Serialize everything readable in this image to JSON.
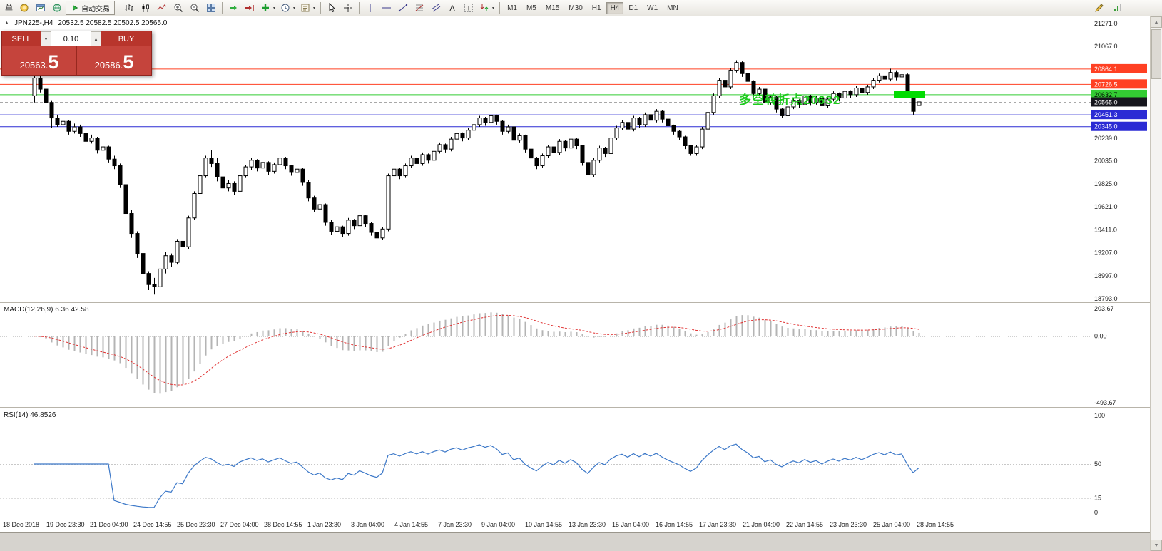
{
  "toolbar": {
    "left_label": "单",
    "auto_trading_label": "自动交易",
    "timeframes": [
      "M1",
      "M5",
      "M15",
      "M30",
      "H1",
      "H4",
      "D1",
      "W1",
      "MN"
    ],
    "active_timeframe": "H4"
  },
  "icons": {
    "symbol_marker": "▲",
    "caret_down": "▾",
    "caret_up": "▴",
    "dropdown_caret": "▾",
    "scroll_up": "▲",
    "scroll_down": "▼"
  },
  "chart_header": {
    "symbol_period": "JPN225-,H4",
    "ohlc": "20532.5 20582.5 20502.5 20565.0"
  },
  "trade_panel": {
    "sell_label": "SELL",
    "buy_label": "BUY",
    "lot": "0.10",
    "sell_price_small": "20563.",
    "sell_price_big": "5",
    "buy_price_small": "20586.",
    "buy_price_big": "5"
  },
  "annotation": {
    "text": "多空转折点20632",
    "color": "#1ecb1e",
    "bar_color": "#00dc00"
  },
  "chart_data": {
    "type": "candlestick",
    "price": {
      "type": "candlestick",
      "symbol": "JPN225-",
      "period": "H4",
      "ylim": [
        18793.0,
        21271.0
      ],
      "grid_labels": [
        "21271.0",
        "21067.0",
        "20239.0",
        "20035.0",
        "19825.0",
        "19621.0",
        "19411.0",
        "19207.0",
        "18997.0",
        "18793.0"
      ],
      "levels": [
        {
          "price": 20864.1,
          "label": "20864.1",
          "color": "#ff4023",
          "text_color": "#ffffff",
          "style": "solid"
        },
        {
          "price": 20726.5,
          "label": "20726.5",
          "color": "#ff4023",
          "text_color": "#ffffff",
          "style": "solid"
        },
        {
          "price": 20632.7,
          "label": "20632.7",
          "color": "#33cc33",
          "text_color": "#000000",
          "style": "solid"
        },
        {
          "price": 20565.0,
          "label": "20565.0",
          "color": "#16161d",
          "text_color": "#ffffff",
          "style": "dash",
          "line_color": "#a8a8a8"
        },
        {
          "price": 20451.3,
          "label": "20451.3",
          "color": "#2b2bd4",
          "text_color": "#ffffff",
          "style": "solid"
        },
        {
          "price": 20345.0,
          "label": "20345.0",
          "color": "#2b2bd4",
          "text_color": "#ffffff",
          "style": "solid"
        }
      ],
      "candles": [
        [
          20620,
          20800,
          20560,
          20780
        ],
        [
          20780,
          20810,
          20650,
          20680
        ],
        [
          20680,
          20700,
          20530,
          20560
        ],
        [
          20560,
          20580,
          20330,
          20420
        ],
        [
          20420,
          20450,
          20340,
          20360
        ],
        [
          20360,
          20430,
          20340,
          20390
        ],
        [
          20390,
          20400,
          20270,
          20300
        ],
        [
          20300,
          20370,
          20280,
          20340
        ],
        [
          20340,
          20360,
          20250,
          20280
        ],
        [
          20280,
          20300,
          20180,
          20210
        ],
        [
          20210,
          20270,
          20190,
          20240
        ],
        [
          20240,
          20250,
          20100,
          20130
        ],
        [
          20130,
          20190,
          20110,
          20160
        ],
        [
          20160,
          20170,
          20020,
          20050
        ],
        [
          20050,
          20080,
          19960,
          19990
        ],
        [
          19990,
          20010,
          19790,
          19820
        ],
        [
          19820,
          19840,
          19520,
          19560
        ],
        [
          19560,
          19590,
          19340,
          19380
        ],
        [
          19380,
          19400,
          19160,
          19200
        ],
        [
          19200,
          19230,
          18980,
          19020
        ],
        [
          19020,
          19040,
          18870,
          18920
        ],
        [
          18920,
          18980,
          18830,
          18900
        ],
        [
          18900,
          19090,
          18860,
          19060
        ],
        [
          19060,
          19210,
          19020,
          19180
        ],
        [
          19180,
          19200,
          19080,
          19120
        ],
        [
          19120,
          19330,
          19100,
          19310
        ],
        [
          19310,
          19340,
          19220,
          19260
        ],
        [
          19260,
          19540,
          19240,
          19520
        ],
        [
          19520,
          19760,
          19500,
          19740
        ],
        [
          19740,
          19920,
          19710,
          19900
        ],
        [
          19900,
          20080,
          19880,
          20060
        ],
        [
          20060,
          20130,
          19980,
          20010
        ],
        [
          20010,
          20060,
          19850,
          19890
        ],
        [
          19890,
          19910,
          19760,
          19790
        ],
        [
          19790,
          19860,
          19760,
          19830
        ],
        [
          19830,
          19850,
          19730,
          19760
        ],
        [
          19760,
          19920,
          19740,
          19900
        ],
        [
          19900,
          20000,
          19880,
          19980
        ],
        [
          19980,
          20060,
          19950,
          20040
        ],
        [
          20040,
          20050,
          19940,
          19970
        ],
        [
          19970,
          20040,
          19950,
          20020
        ],
        [
          20020,
          20030,
          19910,
          19940
        ],
        [
          19940,
          20020,
          19920,
          20000
        ],
        [
          20000,
          20080,
          19980,
          20060
        ],
        [
          20060,
          20070,
          19960,
          19990
        ],
        [
          19990,
          20000,
          19900,
          19930
        ],
        [
          19930,
          19980,
          19910,
          19960
        ],
        [
          19960,
          19970,
          19810,
          19840
        ],
        [
          19840,
          19860,
          19670,
          19700
        ],
        [
          19700,
          19720,
          19570,
          19600
        ],
        [
          19600,
          19660,
          19580,
          19640
        ],
        [
          19640,
          19650,
          19450,
          19480
        ],
        [
          19480,
          19500,
          19370,
          19400
        ],
        [
          19400,
          19460,
          19380,
          19440
        ],
        [
          19440,
          19450,
          19350,
          19380
        ],
        [
          19380,
          19520,
          19360,
          19500
        ],
        [
          19500,
          19510,
          19420,
          19450
        ],
        [
          19450,
          19560,
          19430,
          19540
        ],
        [
          19540,
          19550,
          19440,
          19470
        ],
        [
          19470,
          19480,
          19360,
          19390
        ],
        [
          19390,
          19400,
          19240,
          19340
        ],
        [
          19340,
          19440,
          19320,
          19420
        ],
        [
          19420,
          19920,
          19400,
          19900
        ],
        [
          19900,
          19990,
          19860,
          19960
        ],
        [
          19960,
          19970,
          19870,
          19900
        ],
        [
          19900,
          20010,
          19880,
          19990
        ],
        [
          19990,
          20080,
          19970,
          20060
        ],
        [
          20060,
          20070,
          19980,
          20010
        ],
        [
          20010,
          20110,
          19990,
          20090
        ],
        [
          20090,
          20100,
          20010,
          20040
        ],
        [
          20040,
          20140,
          20020,
          20120
        ],
        [
          20120,
          20200,
          20100,
          20180
        ],
        [
          20180,
          20190,
          20110,
          20140
        ],
        [
          20140,
          20250,
          20120,
          20230
        ],
        [
          20230,
          20300,
          20210,
          20280
        ],
        [
          20280,
          20290,
          20210,
          20240
        ],
        [
          20240,
          20330,
          20220,
          20310
        ],
        [
          20310,
          20380,
          20290,
          20360
        ],
        [
          20360,
          20440,
          20340,
          20420
        ],
        [
          20420,
          20430,
          20350,
          20380
        ],
        [
          20380,
          20460,
          20360,
          20440
        ],
        [
          20440,
          20450,
          20360,
          20390
        ],
        [
          20390,
          20400,
          20270,
          20300
        ],
        [
          20300,
          20360,
          20280,
          20340
        ],
        [
          20340,
          20350,
          20190,
          20220
        ],
        [
          20220,
          20280,
          20200,
          20260
        ],
        [
          20260,
          20270,
          20110,
          20140
        ],
        [
          20140,
          20150,
          20030,
          20060
        ],
        [
          20060,
          20070,
          19960,
          19990
        ],
        [
          19990,
          20100,
          19970,
          20080
        ],
        [
          20080,
          20180,
          20060,
          20160
        ],
        [
          20160,
          20170,
          20080,
          20110
        ],
        [
          20110,
          20230,
          20090,
          20210
        ],
        [
          20210,
          20220,
          20120,
          20150
        ],
        [
          20150,
          20250,
          20130,
          20230
        ],
        [
          20230,
          20240,
          20140,
          20170
        ],
        [
          20170,
          20180,
          19990,
          20020
        ],
        [
          20020,
          20030,
          19870,
          19910
        ],
        [
          19910,
          20060,
          19890,
          20040
        ],
        [
          20040,
          20170,
          20020,
          20150
        ],
        [
          20150,
          20160,
          20070,
          20100
        ],
        [
          20100,
          20260,
          20080,
          20240
        ],
        [
          20240,
          20350,
          20220,
          20330
        ],
        [
          20330,
          20400,
          20310,
          20380
        ],
        [
          20380,
          20390,
          20290,
          20320
        ],
        [
          20320,
          20440,
          20300,
          20420
        ],
        [
          20420,
          20430,
          20330,
          20360
        ],
        [
          20360,
          20470,
          20340,
          20450
        ],
        [
          20450,
          20460,
          20370,
          20400
        ],
        [
          20400,
          20500,
          20380,
          20480
        ],
        [
          20480,
          20490,
          20380,
          20410
        ],
        [
          20410,
          20420,
          20320,
          20350
        ],
        [
          20350,
          20360,
          20270,
          20300
        ],
        [
          20300,
          20310,
          20220,
          20250
        ],
        [
          20250,
          20260,
          20140,
          20170
        ],
        [
          20170,
          20180,
          20080,
          20100
        ],
        [
          20100,
          20180,
          20080,
          20160
        ],
        [
          20160,
          20340,
          20140,
          20320
        ],
        [
          20320,
          20490,
          20300,
          20470
        ],
        [
          20470,
          20640,
          20450,
          20620
        ],
        [
          20620,
          20780,
          20600,
          20760
        ],
        [
          20760,
          20790,
          20660,
          20700
        ],
        [
          20700,
          20870,
          20680,
          20850
        ],
        [
          20850,
          20940,
          20830,
          20920
        ],
        [
          20920,
          20930,
          20790,
          20820
        ],
        [
          20820,
          20840,
          20720,
          20750
        ],
        [
          20750,
          20760,
          20610,
          20640
        ],
        [
          20640,
          20700,
          20620,
          20680
        ],
        [
          20680,
          20690,
          20530,
          20560
        ],
        [
          20560,
          20630,
          20540,
          20610
        ],
        [
          20610,
          20620,
          20470,
          20500
        ],
        [
          20500,
          20510,
          20420,
          20440
        ],
        [
          20440,
          20540,
          20420,
          20520
        ],
        [
          20520,
          20600,
          20500,
          20580
        ],
        [
          20580,
          20590,
          20510,
          20540
        ],
        [
          20540,
          20640,
          20520,
          20620
        ],
        [
          20620,
          20630,
          20530,
          20560
        ],
        [
          20560,
          20620,
          20540,
          20600
        ],
        [
          20600,
          20610,
          20500,
          20530
        ],
        [
          20530,
          20610,
          20510,
          20590
        ],
        [
          20590,
          20660,
          20570,
          20640
        ],
        [
          20640,
          20650,
          20570,
          20600
        ],
        [
          20600,
          20680,
          20580,
          20660
        ],
        [
          20660,
          20670,
          20600,
          20630
        ],
        [
          20630,
          20710,
          20610,
          20690
        ],
        [
          20690,
          20700,
          20620,
          20650
        ],
        [
          20650,
          20720,
          20630,
          20700
        ],
        [
          20700,
          20780,
          20680,
          20760
        ],
        [
          20760,
          20820,
          20740,
          20800
        ],
        [
          20800,
          20810,
          20740,
          20770
        ],
        [
          20770,
          20864,
          20750,
          20830
        ],
        [
          20830,
          20850,
          20760,
          20790
        ],
        [
          20790,
          20830,
          20770,
          20810
        ],
        [
          20810,
          20820,
          20620,
          20650
        ],
        [
          20650,
          20660,
          20450,
          20480
        ],
        [
          20532.5,
          20582.5,
          20502.5,
          20565
        ]
      ]
    },
    "macd": {
      "type": "bar+line",
      "label": "MACD(12,26,9) 6.36 42.58",
      "params": [
        12,
        26,
        9
      ],
      "scale_labels": [
        "203.67",
        "0.00",
        "-493.67"
      ],
      "ylim": [
        -493.67,
        203.67
      ]
    },
    "rsi": {
      "type": "line",
      "label": "RSI(14) 46.8526",
      "period": 14,
      "levels": [
        50,
        15
      ],
      "scale_labels": [
        "100",
        "50",
        "15",
        "0"
      ],
      "ylim": [
        0,
        100
      ]
    },
    "x_axis_labels": [
      "18 Dec 2018",
      "19 Dec 23:30",
      "21 Dec 04:00",
      "24 Dec 14:55",
      "25 Dec 23:30",
      "27 Dec 04:00",
      "28 Dec 14:55",
      "1 Jan 23:30",
      "3 Jan 04:00",
      "4 Jan 14:55",
      "7 Jan 23:30",
      "9 Jan 04:00",
      "10 Jan 14:55",
      "13 Jan 23:30",
      "15 Jan 04:00",
      "16 Jan 14:55",
      "17 Jan 23:30",
      "21 Jan 04:00",
      "22 Jan 14:55",
      "23 Jan 23:30",
      "25 Jan 04:00",
      "28 Jan 14:55"
    ]
  }
}
